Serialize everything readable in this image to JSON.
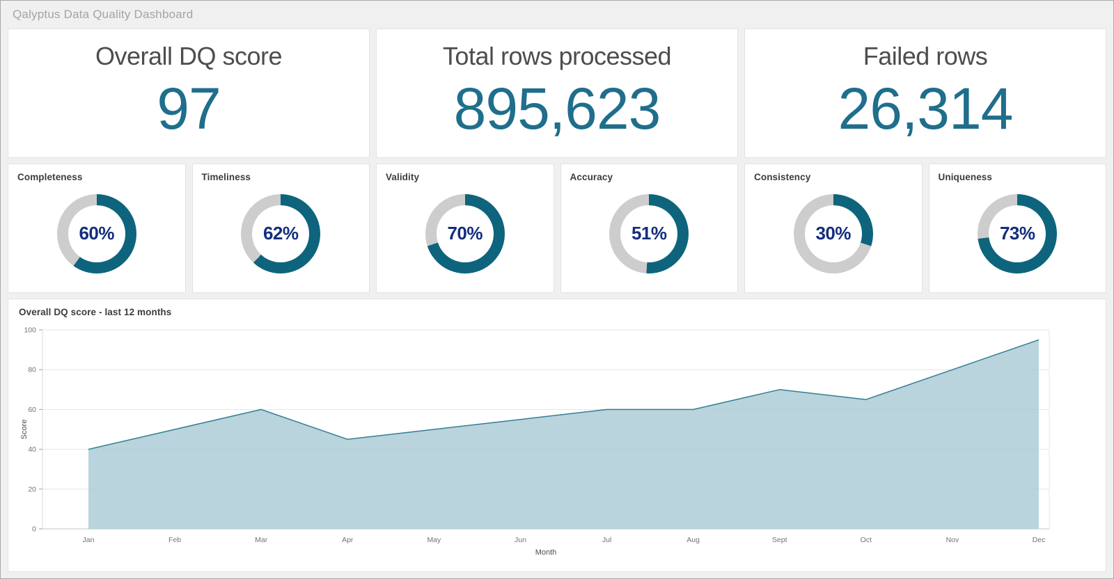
{
  "header": {
    "title": "Qalyptus Data Quality Dashboard"
  },
  "kpis": [
    {
      "label": "Overall DQ score",
      "value": "97"
    },
    {
      "label": "Total rows processed",
      "value": "895,623"
    },
    {
      "label": "Failed rows",
      "value": "26,314"
    }
  ],
  "theme": {
    "kpi_value_color": "#1f6e8c",
    "donut_fill": "#0e647d",
    "donut_track": "#cdcdcd",
    "donut_label_color": "#132e7e",
    "area_fill": "#adccd6",
    "area_line": "#337e95",
    "background": "#f0f0f0",
    "card_background": "#ffffff"
  },
  "chart_data": [
    {
      "type": "area",
      "title": "Overall DQ score - last 12 months",
      "x": [
        "Jan",
        "Feb",
        "Mar",
        "Apr",
        "May",
        "Jun",
        "Jul",
        "Aug",
        "Sept",
        "Oct",
        "Nov",
        "Dec"
      ],
      "series": [
        {
          "name": "Score",
          "values": [
            40,
            50,
            60,
            45,
            50,
            55,
            60,
            60,
            70,
            65,
            80,
            95
          ]
        }
      ],
      "xlabel": "Month",
      "ylabel": "Score",
      "ylim": [
        0,
        100
      ],
      "yticks": [
        0,
        20,
        40,
        60,
        80,
        100
      ],
      "grid": true,
      "legend": false
    },
    {
      "type": "pie",
      "subtype": "donut_gauges",
      "items": [
        {
          "label": "Completeness",
          "percent": 60,
          "percent_label": "60%"
        },
        {
          "label": "Timeliness",
          "percent": 62,
          "percent_label": "62%"
        },
        {
          "label": "Validity",
          "percent": 70,
          "percent_label": "70%"
        },
        {
          "label": "Accuracy",
          "percent": 51,
          "percent_label": "51%"
        },
        {
          "label": "Consistency",
          "percent": 30,
          "percent_label": "30%"
        },
        {
          "label": "Uniqueness",
          "percent": 73,
          "percent_label": "73%"
        }
      ]
    }
  ]
}
